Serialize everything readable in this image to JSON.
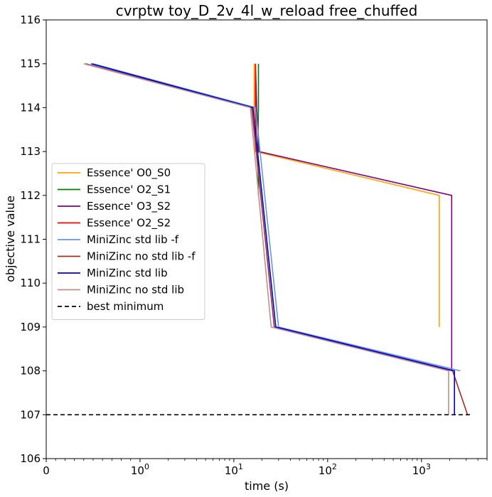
{
  "chart_data": {
    "type": "line",
    "title": "cvrptw toy_D_2v_4l_w_reload free_chuffed",
    "xlabel": "time (s)",
    "ylabel": "objective value",
    "xscale": "symlog",
    "xlim": [
      0,
      5000
    ],
    "ylim": [
      106,
      116
    ],
    "x_ticks": [
      {
        "value": 0,
        "label": "0",
        "sup": ""
      },
      {
        "value": 1,
        "label": "10",
        "sup": "0"
      },
      {
        "value": 10,
        "label": "10",
        "sup": "1"
      },
      {
        "value": 100,
        "label": "10",
        "sup": "2"
      },
      {
        "value": 1000,
        "label": "10",
        "sup": "3"
      }
    ],
    "y_ticks": [
      "106",
      "107",
      "108",
      "109",
      "110",
      "111",
      "112",
      "113",
      "114",
      "115",
      "116"
    ],
    "legend_position": "center-left",
    "series": [
      {
        "name": "Essence' O0_S0",
        "color": "#ffa500",
        "dash": "",
        "x": [
          16.5,
          16.5,
          17.0,
          1550,
          1550
        ],
        "y": [
          115,
          114,
          113,
          112,
          109
        ]
      },
      {
        "name": "Essence' O2_S1",
        "color": "#008000",
        "dash": "",
        "x": [
          18.3,
          18.3,
          18.0,
          18.3
        ],
        "y": [
          115,
          114,
          113,
          112
        ]
      },
      {
        "name": "Essence' O3_S2",
        "color": "#800080",
        "dash": "",
        "x": [
          17.0,
          17.5,
          18.5,
          2100,
          2100
        ],
        "y": [
          115,
          114,
          113,
          112,
          108
        ]
      },
      {
        "name": "Essence' O2_S2",
        "color": "#ff0000",
        "dash": "",
        "x": [
          17.0,
          17.0,
          17.5
        ],
        "y": [
          115,
          114,
          113
        ]
      },
      {
        "name": "MiniZinc std lib  -f",
        "color": "#6495ed",
        "dash": "",
        "x": [
          0.5,
          17.0,
          30.0,
          2600
        ],
        "y": [
          115,
          114,
          109,
          108
        ]
      },
      {
        "name": "MiniZinc no std lib -f",
        "color": "#a52a2a",
        "dash": "",
        "x": [
          0.42,
          15.5,
          27.0,
          2150,
          3100
        ],
        "y": [
          115,
          114,
          109,
          108,
          107
        ]
      },
      {
        "name": "MiniZinc std lib",
        "color": "#0000cd",
        "dash": "",
        "x": [
          0.48,
          16.0,
          28.0,
          2250,
          2250
        ],
        "y": [
          115,
          114,
          109,
          108,
          107
        ]
      },
      {
        "name": "MiniZinc no std lib",
        "color": "#bc8f8f",
        "dash": "",
        "x": [
          0.4,
          15.0,
          25.0,
          1950,
          1950
        ],
        "y": [
          115,
          114,
          109,
          108,
          107
        ]
      },
      {
        "name": "best minimum",
        "color": "#000000",
        "dash": "6,4",
        "x": [
          0,
          3300
        ],
        "y": [
          107,
          107
        ]
      }
    ]
  }
}
